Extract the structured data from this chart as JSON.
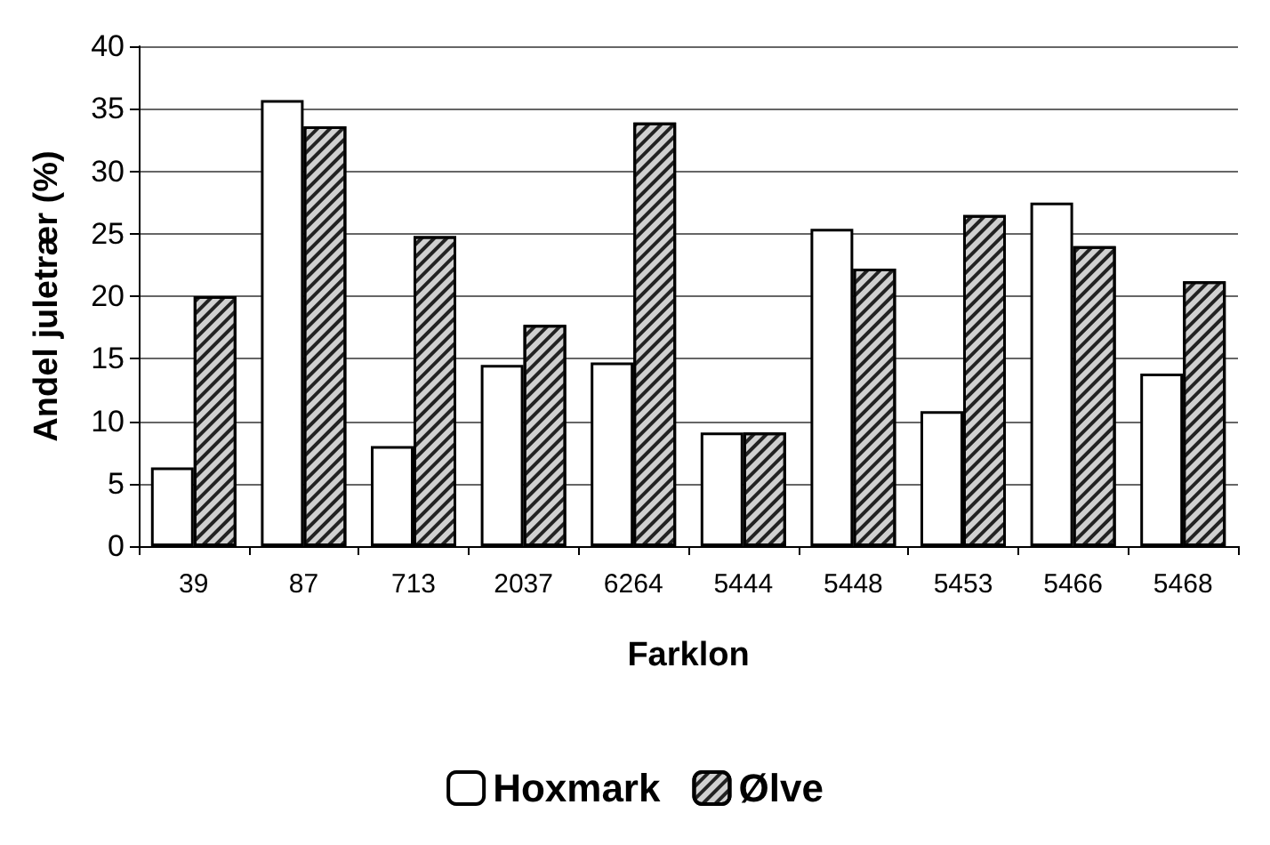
{
  "chart_data": {
    "type": "bar",
    "xlabel": "Farklon",
    "ylabel": "Andel juletrær (%)",
    "categories": [
      "39",
      "87",
      "713",
      "2037",
      "6264",
      "5444",
      "5448",
      "5453",
      "5466",
      "5468"
    ],
    "series": [
      {
        "name": "Hoxmark",
        "color": "#ffffff",
        "values": [
          6.3,
          35.7,
          8,
          14.5,
          14.7,
          9.1,
          25.4,
          10.8,
          27.5,
          13.8
        ]
      },
      {
        "name": "Ølve",
        "color": "#d0d0d0",
        "values": [
          20,
          33.6,
          24.8,
          17.7,
          33.9,
          9.1,
          22.2,
          26.5,
          24,
          21.2
        ]
      }
    ],
    "ylim": [
      0,
      40
    ],
    "yticks": [
      0,
      5,
      10,
      15,
      20,
      25,
      30,
      35,
      40
    ],
    "grid": "y",
    "legend": "bottom"
  }
}
